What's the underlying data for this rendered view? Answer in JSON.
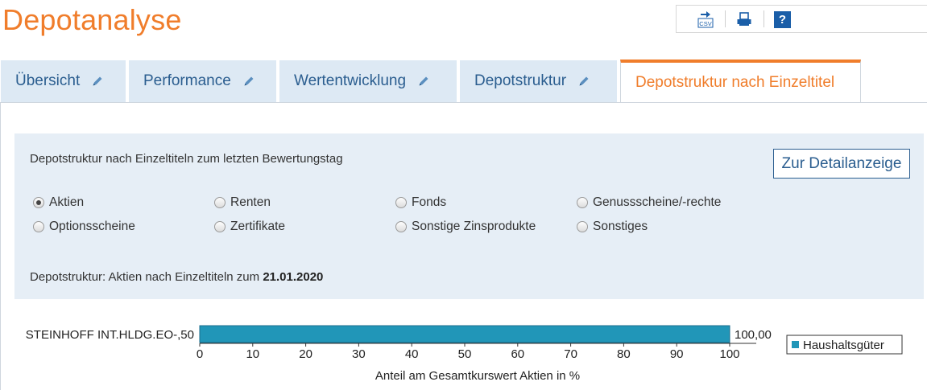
{
  "page": {
    "title": "Depotanalyse"
  },
  "toolbar": {
    "csv_label": "CSV"
  },
  "tabs": [
    {
      "label": "Übersicht",
      "active": false
    },
    {
      "label": "Performance",
      "active": false
    },
    {
      "label": "Wertentwicklung",
      "active": false
    },
    {
      "label": "Depotstruktur",
      "active": false
    },
    {
      "label": "Depotstruktur nach Einzeltitel",
      "active": true
    }
  ],
  "panel": {
    "description": "Depotstruktur nach Einzeltiteln zum letzten Bewertungstag",
    "detail_button": "Zur Detailanzeige",
    "radios": [
      {
        "label": "Aktien",
        "checked": true
      },
      {
        "label": "Renten",
        "checked": false
      },
      {
        "label": "Fonds",
        "checked": false
      },
      {
        "label": "Genussscheine/-rechte",
        "checked": false
      },
      {
        "label": "Optionsscheine",
        "checked": false
      },
      {
        "label": "Zertifikate",
        "checked": false
      },
      {
        "label": "Sonstige Zinsprodukte",
        "checked": false
      },
      {
        "label": "Sonstiges",
        "checked": false
      }
    ],
    "structure_prefix": "Depotstruktur: Aktien nach Einzeltiteln zum",
    "structure_date": "21.01.2020"
  },
  "colors": {
    "accent": "#f07d2b",
    "link": "#2a5d8f",
    "bar": "#2196b8"
  },
  "chart_data": {
    "type": "bar",
    "orientation": "horizontal",
    "categories": [
      "STEINHOFF INT.HLDG.EO-,50"
    ],
    "series": [
      {
        "name": "Haushaltsgüter",
        "values": [
          100
        ]
      }
    ],
    "value_labels": [
      "100,00"
    ],
    "xlim": [
      0,
      100
    ],
    "xticks": [
      0,
      10,
      20,
      30,
      40,
      50,
      60,
      70,
      80,
      90,
      100
    ],
    "xlabel": "Anteil am Gesamtkurswert Aktien in %",
    "legend": "right"
  }
}
